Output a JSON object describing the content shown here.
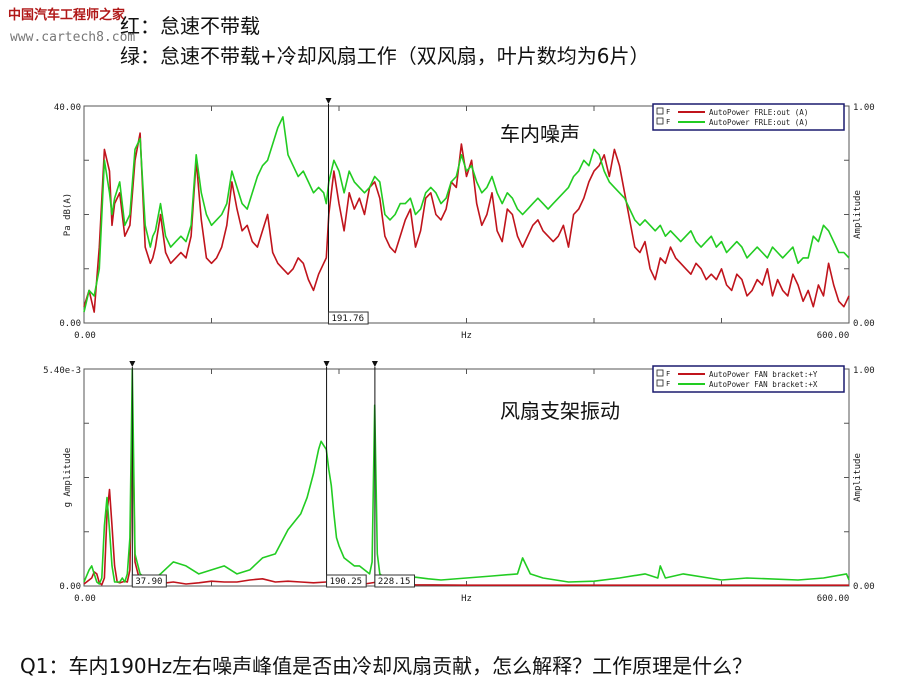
{
  "watermark": {
    "site_name": "中国汽车工程师之家",
    "url": "www.cartech8.com"
  },
  "header": {
    "line1": "红：怠速不带载",
    "line2": "绿：怠速不带载+冷却风扇工作（双风扇，叶片数均为6片）"
  },
  "question": "Q1：车内190Hz左右噪声峰值是否由冷却风扇贡献，怎么解释？工作原理是什么？",
  "colors": {
    "red": "#c0141c",
    "green": "#22cc22",
    "plot_border": "#555555",
    "legend_border": "#1a1a6e"
  },
  "chart_data": [
    {
      "type": "line",
      "annotation": "车内噪声",
      "xlabel": "Hz",
      "ylabel_left": "Pa dB(A)",
      "ylabel_right": "Amplitude",
      "xlim": [
        0,
        600
      ],
      "ylim": [
        0,
        40
      ],
      "x_tick_labels": [
        "0.00",
        "600.00"
      ],
      "y_tick_labels": [
        "0.00",
        "40.00"
      ],
      "right_tick_labels": [
        "0.00",
        "1.00"
      ],
      "legend_placement": "top-right",
      "cursor": {
        "x": 191.76,
        "label": "191.76"
      },
      "series": [
        {
          "name": "AutoPower FRLE:out (A)",
          "color": "#c0141c",
          "x": [
            0,
            4,
            8,
            12,
            16,
            20,
            22,
            24,
            28,
            32,
            36,
            40,
            44,
            48,
            52,
            54,
            56,
            60,
            64,
            68,
            72,
            76,
            80,
            84,
            88,
            92,
            96,
            100,
            104,
            108,
            112,
            116,
            120,
            124,
            128,
            132,
            136,
            140,
            144,
            148,
            152,
            156,
            160,
            164,
            168,
            172,
            176,
            180,
            184,
            188,
            190,
            192,
            196,
            200,
            204,
            208,
            212,
            216,
            220,
            224,
            228,
            232,
            236,
            240,
            244,
            248,
            252,
            256,
            260,
            264,
            268,
            272,
            276,
            280,
            284,
            288,
            292,
            296,
            300,
            304,
            308,
            312,
            316,
            320,
            324,
            328,
            332,
            336,
            340,
            344,
            348,
            352,
            356,
            360,
            364,
            368,
            372,
            376,
            380,
            384,
            388,
            392,
            396,
            400,
            404,
            408,
            412,
            416,
            420,
            424,
            428,
            432,
            436,
            440,
            444,
            448,
            452,
            456,
            460,
            464,
            468,
            472,
            476,
            480,
            484,
            488,
            492,
            496,
            500,
            504,
            508,
            512,
            516,
            520,
            524,
            528,
            532,
            536,
            540,
            544,
            548,
            552,
            556,
            560,
            564,
            568,
            572,
            576,
            580,
            584,
            588,
            592,
            596,
            600
          ],
          "values": [
            3,
            6,
            2,
            14,
            32,
            28,
            18,
            22,
            24,
            16,
            18,
            30,
            35,
            14,
            11,
            12,
            14,
            20,
            13,
            11,
            12,
            13,
            12,
            16,
            30,
            19,
            12,
            11,
            12,
            14,
            18,
            26,
            21,
            17,
            18,
            15,
            14,
            17,
            20,
            13,
            11,
            10,
            9,
            10,
            12,
            11,
            8,
            6,
            9,
            11,
            12,
            20,
            28,
            22,
            17,
            24,
            21,
            23,
            20,
            25,
            26,
            23,
            16,
            14,
            13,
            16,
            19,
            21,
            14,
            17,
            23,
            24,
            20,
            19,
            21,
            26,
            25,
            33,
            27,
            30,
            22,
            18,
            20,
            24,
            17,
            15,
            21,
            20,
            16,
            14,
            16,
            18,
            19,
            17,
            16,
            15,
            16,
            18,
            14,
            20,
            21,
            23,
            26,
            28,
            29,
            31,
            27,
            32,
            29,
            24,
            19,
            14,
            13,
            15,
            10,
            8,
            12,
            11,
            14,
            12,
            11,
            10,
            9,
            11,
            10,
            8,
            9,
            8,
            10,
            7,
            6,
            9,
            8,
            5,
            6,
            8,
            7,
            10,
            5,
            8,
            6,
            5,
            9,
            7,
            4,
            6,
            3,
            7,
            5,
            11,
            7,
            4,
            3,
            5
          ]
        },
        {
          "name": "AutoPower FRLE:out (A)",
          "color": "#22cc22",
          "x": [
            0,
            4,
            8,
            12,
            16,
            20,
            22,
            24,
            28,
            32,
            36,
            40,
            44,
            48,
            52,
            54,
            56,
            60,
            64,
            68,
            72,
            76,
            80,
            84,
            88,
            92,
            96,
            100,
            104,
            108,
            112,
            116,
            120,
            124,
            128,
            132,
            136,
            140,
            144,
            148,
            152,
            156,
            160,
            164,
            168,
            172,
            176,
            180,
            184,
            188,
            190,
            192,
            196,
            200,
            204,
            208,
            212,
            216,
            220,
            224,
            228,
            232,
            236,
            240,
            244,
            248,
            252,
            256,
            260,
            264,
            268,
            272,
            276,
            280,
            284,
            288,
            292,
            296,
            300,
            304,
            308,
            312,
            316,
            320,
            324,
            328,
            332,
            336,
            340,
            344,
            348,
            352,
            356,
            360,
            364,
            368,
            372,
            376,
            380,
            384,
            388,
            392,
            396,
            400,
            404,
            408,
            412,
            416,
            420,
            424,
            428,
            432,
            436,
            440,
            444,
            448,
            452,
            456,
            460,
            464,
            468,
            472,
            476,
            480,
            484,
            488,
            492,
            496,
            500,
            504,
            508,
            512,
            516,
            520,
            524,
            528,
            532,
            536,
            540,
            544,
            548,
            552,
            556,
            560,
            564,
            568,
            572,
            576,
            580,
            584,
            588,
            592,
            596,
            600
          ],
          "values": [
            2,
            6,
            5,
            10,
            30,
            24,
            20,
            23,
            26,
            18,
            20,
            32,
            34,
            18,
            14,
            16,
            17,
            22,
            16,
            14,
            15,
            16,
            15,
            18,
            31,
            24,
            20,
            18,
            19,
            20,
            22,
            28,
            25,
            22,
            21,
            24,
            27,
            29,
            30,
            33,
            36,
            38,
            31,
            29,
            27,
            28,
            26,
            24,
            25,
            24,
            22,
            26,
            30,
            28,
            24,
            28,
            26,
            25,
            24,
            25,
            27,
            26,
            20,
            19,
            20,
            22,
            22,
            23,
            20,
            21,
            24,
            25,
            24,
            22,
            23,
            26,
            27,
            31,
            28,
            29,
            26,
            24,
            25,
            27,
            24,
            22,
            24,
            23,
            21,
            20,
            21,
            22,
            23,
            22,
            21,
            22,
            23,
            24,
            25,
            27,
            28,
            30,
            29,
            32,
            31,
            28,
            26,
            25,
            24,
            23,
            21,
            19,
            18,
            19,
            18,
            17,
            18,
            16,
            17,
            16,
            15,
            16,
            17,
            15,
            14,
            15,
            16,
            14,
            15,
            13,
            14,
            15,
            14,
            12,
            13,
            14,
            13,
            12,
            14,
            13,
            12,
            13,
            14,
            11,
            12,
            12,
            16,
            15,
            18,
            17,
            15,
            13,
            13,
            12
          ]
        }
      ]
    },
    {
      "type": "line",
      "annotation": "风扇支架振动",
      "xlabel": "Hz",
      "ylabel_left": "g Amplitude",
      "ylabel_right": "Amplitude",
      "xlim": [
        0,
        600
      ],
      "ylim": [
        0,
        0.0054
      ],
      "x_tick_labels": [
        "0.00",
        "600.00"
      ],
      "y_tick_labels": [
        "0.00",
        "5.40e-3"
      ],
      "right_tick_labels": [
        "0.00",
        "1.00"
      ],
      "legend_placement": "top-right",
      "cursors": [
        {
          "x": 37.9,
          "label": "37.90"
        },
        {
          "x": 190.25,
          "label": "190.25"
        },
        {
          "x": 228.15,
          "label": "228.15"
        }
      ],
      "series": [
        {
          "name": "AutoPower FAN bracket:+Y",
          "color": "#c0141c",
          "x": [
            0,
            6,
            8,
            10,
            12,
            14,
            16,
            18,
            20,
            22,
            24,
            26,
            28,
            30,
            32,
            34,
            36,
            38,
            40,
            44,
            48,
            52,
            56,
            60,
            70,
            80,
            90,
            100,
            110,
            120,
            130,
            140,
            150,
            160,
            170,
            180,
            190,
            200,
            210,
            220,
            230,
            240,
            260,
            300,
            350,
            400,
            450,
            500,
            550,
            600
          ],
          "values": [
            5e-05,
            0.0002,
            0.00035,
            0.0003,
            8e-05,
            3e-05,
            0.0002,
            0.0018,
            0.0024,
            0.0015,
            0.0005,
            0.0001,
            8e-05,
            0.0001,
            0.00012,
            0.0001,
            0.0004,
            0.0044,
            0.0006,
            0.0001,
            8e-05,
            5e-05,
            4e-05,
            6e-05,
            0.0001,
            5e-05,
            8e-05,
            0.00012,
            0.0001,
            0.0001,
            0.00015,
            0.00018,
            0.0001,
            0.00012,
            0.0001,
            8e-05,
            0.0001,
            0.00012,
            8e-05,
            5e-05,
            0.0001,
            5e-05,
            3e-05,
            2e-05,
            2e-05,
            2e-05,
            2e-05,
            2e-05,
            2e-05,
            2e-05
          ]
        },
        {
          "name": "AutoPower FAN bracket:+X",
          "color": "#22cc22",
          "x": [
            0,
            4,
            6,
            8,
            10,
            12,
            14,
            16,
            18,
            20,
            22,
            24,
            26,
            28,
            30,
            32,
            34,
            36,
            37.9,
            40,
            44,
            50,
            56,
            60,
            70,
            80,
            90,
            100,
            110,
            120,
            130,
            140,
            150,
            160,
            170,
            175,
            180,
            184,
            186,
            188,
            190,
            192,
            194,
            196,
            198,
            200,
            204,
            208,
            212,
            216,
            220,
            224,
            226,
            228,
            230,
            232,
            236,
            240,
            250,
            260,
            270,
            280,
            300,
            320,
            340,
            344,
            350,
            360,
            380,
            400,
            420,
            440,
            450,
            452,
            456,
            470,
            490,
            500,
            520,
            560,
            580,
            598,
            600
          ],
          "values": [
            0.0001,
            0.0004,
            0.0005,
            0.0003,
            0.0001,
            5e-05,
            0.0002,
            0.0015,
            0.0022,
            0.0014,
            0.0005,
            0.0001,
            0.0001,
            0.0001,
            0.0002,
            0.0001,
            0.0003,
            0.0012,
            0.0054,
            0.0008,
            0.0003,
            0.00015,
            0.0002,
            0.0003,
            0.0006,
            0.0005,
            0.0003,
            0.0004,
            0.0005,
            0.0003,
            0.0004,
            0.0007,
            0.0008,
            0.0014,
            0.0018,
            0.0022,
            0.0028,
            0.0034,
            0.0036,
            0.0035,
            0.0034,
            0.0029,
            0.0025,
            0.0018,
            0.0012,
            0.001,
            0.0007,
            0.0006,
            0.0005,
            0.0005,
            0.0004,
            0.0003,
            0.0006,
            0.0045,
            0.0008,
            0.0003,
            0.0002,
            0.00015,
            0.00018,
            0.00022,
            0.00018,
            0.00015,
            0.0002,
            0.00025,
            0.0003,
            0.0007,
            0.0003,
            0.0002,
            0.0001,
            0.00012,
            0.0002,
            0.0003,
            0.0002,
            0.0005,
            0.0002,
            0.0003,
            0.0002,
            0.00015,
            0.0002,
            0.00015,
            0.0002,
            0.0003,
            0.00015
          ]
        }
      ]
    }
  ]
}
